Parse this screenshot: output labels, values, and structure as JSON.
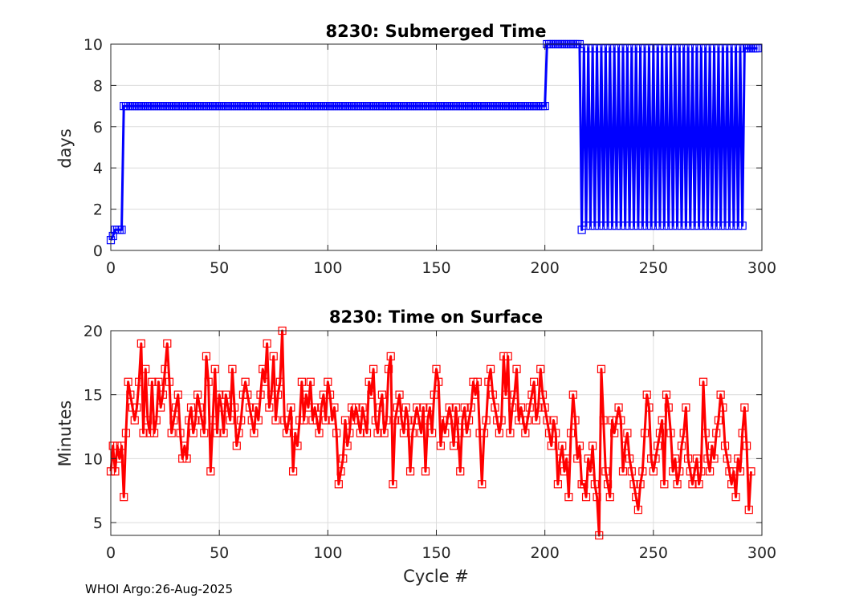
{
  "footer_text": "WHOI Argo:26-Aug-2025",
  "chart_data": [
    {
      "type": "line",
      "title": "8230: Submerged Time",
      "xlabel": "",
      "ylabel": "days",
      "xlim": [
        0,
        300
      ],
      "ylim": [
        0,
        10
      ],
      "xticks": [
        0,
        50,
        100,
        150,
        200,
        250,
        300
      ],
      "yticks": [
        0,
        2,
        4,
        6,
        8,
        10
      ],
      "grid": true,
      "color": "#0000ff",
      "marker": "square",
      "x_start": 0,
      "x_step": 1,
      "series": [
        {
          "name": "Submerged Time (days)",
          "values": [
            0.5,
            0.7,
            1.0,
            1.0,
            1.0,
            1.0,
            7.0,
            7.0,
            7.0,
            7.0,
            7.0,
            7.0,
            7.0,
            7.0,
            7.0,
            7.0,
            7.0,
            7.0,
            7.0,
            7.0,
            7.0,
            7.0,
            7.0,
            7.0,
            7.0,
            7.0,
            7.0,
            7.0,
            7.0,
            7.0,
            7.0,
            7.0,
            7.0,
            7.0,
            7.0,
            7.0,
            7.0,
            7.0,
            7.0,
            7.0,
            7.0,
            7.0,
            7.0,
            7.0,
            7.0,
            7.0,
            7.0,
            7.0,
            7.0,
            7.0,
            7.0,
            7.0,
            7.0,
            7.0,
            7.0,
            7.0,
            7.0,
            7.0,
            7.0,
            7.0,
            7.0,
            7.0,
            7.0,
            7.0,
            7.0,
            7.0,
            7.0,
            7.0,
            7.0,
            7.0,
            7.0,
            7.0,
            7.0,
            7.0,
            7.0,
            7.0,
            7.0,
            7.0,
            7.0,
            7.0,
            7.0,
            7.0,
            7.0,
            7.0,
            7.0,
            7.0,
            7.0,
            7.0,
            7.0,
            7.0,
            7.0,
            7.0,
            7.0,
            7.0,
            7.0,
            7.0,
            7.0,
            7.0,
            7.0,
            7.0,
            7.0,
            7.0,
            7.0,
            7.0,
            7.0,
            7.0,
            7.0,
            7.0,
            7.0,
            7.0,
            7.0,
            7.0,
            7.0,
            7.0,
            7.0,
            7.0,
            7.0,
            7.0,
            7.0,
            7.0,
            7.0,
            7.0,
            7.0,
            7.0,
            7.0,
            7.0,
            7.0,
            7.0,
            7.0,
            7.0,
            7.0,
            7.0,
            7.0,
            7.0,
            7.0,
            7.0,
            7.0,
            7.0,
            7.0,
            7.0,
            7.0,
            7.0,
            7.0,
            7.0,
            7.0,
            7.0,
            7.0,
            7.0,
            7.0,
            7.0,
            7.0,
            7.0,
            7.0,
            7.0,
            7.0,
            7.0,
            7.0,
            7.0,
            7.0,
            7.0,
            7.0,
            7.0,
            7.0,
            7.0,
            7.0,
            7.0,
            7.0,
            7.0,
            7.0,
            7.0,
            7.0,
            7.0,
            7.0,
            7.0,
            7.0,
            7.0,
            7.0,
            7.0,
            7.0,
            7.0,
            7.0,
            7.0,
            7.0,
            7.0,
            7.0,
            7.0,
            7.0,
            7.0,
            7.0,
            7.0,
            7.0,
            7.0,
            7.0,
            7.0,
            7.0,
            7.0,
            7.0,
            7.0,
            7.0,
            7.0,
            7.0,
            10.0,
            10.0,
            10.0,
            10.0,
            10.0,
            10.0,
            10.0,
            10.0,
            10.0,
            10.0,
            10.0,
            10.0,
            10.0,
            10.0,
            10.0,
            10.0,
            1.0,
            9.8,
            1.2,
            9.8,
            1.2,
            9.8,
            1.2,
            9.8,
            1.2,
            9.8,
            1.2,
            9.8,
            1.2,
            9.8,
            1.2,
            9.8,
            1.2,
            9.8,
            1.2,
            9.8,
            1.2,
            9.8,
            1.2,
            9.8,
            1.2,
            9.8,
            1.2,
            9.8,
            1.2,
            9.8,
            1.2,
            9.8,
            1.2,
            9.8,
            1.2,
            9.8,
            1.2,
            9.8,
            1.2,
            9.8,
            1.2,
            9.8,
            1.2,
            9.8,
            1.2,
            9.8,
            1.2,
            9.8,
            1.2,
            9.8,
            1.2,
            9.8,
            1.2,
            9.8,
            1.2,
            9.8,
            1.2,
            9.8,
            1.2,
            9.8,
            1.2,
            9.8,
            1.2,
            9.8,
            1.2,
            9.8,
            1.2,
            9.8,
            1.2,
            9.8,
            1.2,
            9.8,
            1.2,
            9.8,
            1.2,
            9.8,
            9.8,
            9.8,
            9.8,
            9.8,
            9.8,
            9.8
          ]
        }
      ]
    },
    {
      "type": "line",
      "title": "8230: Time on Surface",
      "xlabel": "Cycle #",
      "ylabel": "Minutes",
      "xlim": [
        0,
        300
      ],
      "ylim": [
        4,
        20
      ],
      "xticks": [
        0,
        50,
        100,
        150,
        200,
        250,
        300
      ],
      "yticks": [
        5,
        10,
        15,
        20
      ],
      "grid": true,
      "color": "#ff0000",
      "marker": "square",
      "x_start": 0,
      "x_step": 1,
      "series": [
        {
          "name": "Time on Surface (minutes)",
          "values": [
            9,
            11,
            9,
            11,
            10,
            11,
            7,
            12,
            16,
            15,
            14,
            13,
            14,
            16,
            19,
            12,
            17,
            13,
            12,
            16,
            12,
            13,
            16,
            14,
            15,
            17,
            19,
            16,
            12,
            13,
            14,
            15,
            12,
            10,
            11,
            10,
            13,
            14,
            12,
            13,
            15,
            14,
            13,
            12,
            18,
            16,
            9,
            13,
            17,
            12,
            15,
            14,
            12,
            15,
            14,
            13,
            17,
            14,
            11,
            12,
            13,
            15,
            16,
            15,
            14,
            13,
            12,
            14,
            13,
            15,
            17,
            16,
            19,
            14,
            15,
            18,
            13,
            15,
            16,
            20,
            13,
            12,
            13,
            14,
            9,
            12,
            11,
            13,
            16,
            13,
            15,
            14,
            16,
            13,
            14,
            13,
            12,
            14,
            15,
            13,
            16,
            15,
            13,
            14,
            12,
            8,
            9,
            10,
            13,
            11,
            12,
            14,
            13,
            14,
            13,
            12,
            14,
            13,
            12,
            16,
            15,
            17,
            13,
            12,
            14,
            15,
            12,
            13,
            17,
            18,
            8,
            13,
            14,
            15,
            13,
            12,
            14,
            13,
            9,
            12,
            13,
            14,
            13,
            12,
            14,
            9,
            13,
            14,
            12,
            15,
            17,
            16,
            11,
            13,
            12,
            13,
            14,
            13,
            11,
            14,
            12,
            9,
            13,
            14,
            12,
            13,
            14,
            16,
            15,
            16,
            12,
            8,
            12,
            13,
            16,
            17,
            15,
            14,
            13,
            12,
            13,
            18,
            15,
            18,
            12,
            14,
            15,
            17,
            13,
            14,
            13,
            12,
            13,
            14,
            15,
            16,
            13,
            14,
            17,
            15,
            14,
            13,
            12,
            11,
            13,
            12,
            8,
            10,
            11,
            9,
            10,
            7,
            12,
            15,
            13,
            10,
            11,
            8,
            8,
            7,
            10,
            9,
            11,
            8,
            7,
            4,
            17,
            13,
            9,
            8,
            7,
            13,
            12,
            13,
            14,
            13,
            9,
            11,
            12,
            10,
            9,
            8,
            7,
            6,
            8,
            9,
            12,
            15,
            14,
            10,
            9,
            10,
            11,
            12,
            13,
            8,
            15,
            14,
            12,
            9,
            10,
            8,
            9,
            11,
            12,
            14,
            10,
            9,
            8,
            9,
            10,
            8,
            9,
            16,
            12,
            10,
            9,
            11,
            10,
            12,
            13,
            15,
            14,
            11,
            10,
            9,
            8,
            9,
            7,
            10,
            9,
            12,
            14,
            11,
            6,
            9
          ]
        }
      ]
    }
  ]
}
